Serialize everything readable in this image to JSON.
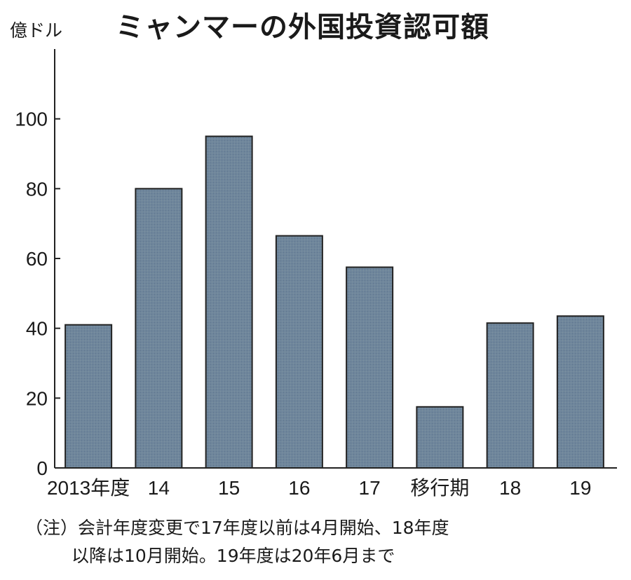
{
  "chart_data": {
    "type": "bar",
    "title": "ミャンマーの外国投資認可額",
    "unit_label": "億ドル",
    "categories": [
      "2013年度",
      "14",
      "15",
      "16",
      "17",
      "移行期",
      "18",
      "19"
    ],
    "values": [
      41,
      80,
      95,
      66.5,
      57.5,
      17.5,
      41.5,
      43.5
    ],
    "yticks": [
      0,
      20,
      40,
      60,
      80,
      100
    ],
    "ylim": [
      0,
      120
    ],
    "grid": false,
    "legend": "none",
    "bar_color": "#6f869c",
    "bar_edge_color": "#222222",
    "notes": [
      "（注）会計年度変更で17年度以前は4月開始、18年度",
      "以降は10月開始。19年度は20年6月まで"
    ]
  }
}
